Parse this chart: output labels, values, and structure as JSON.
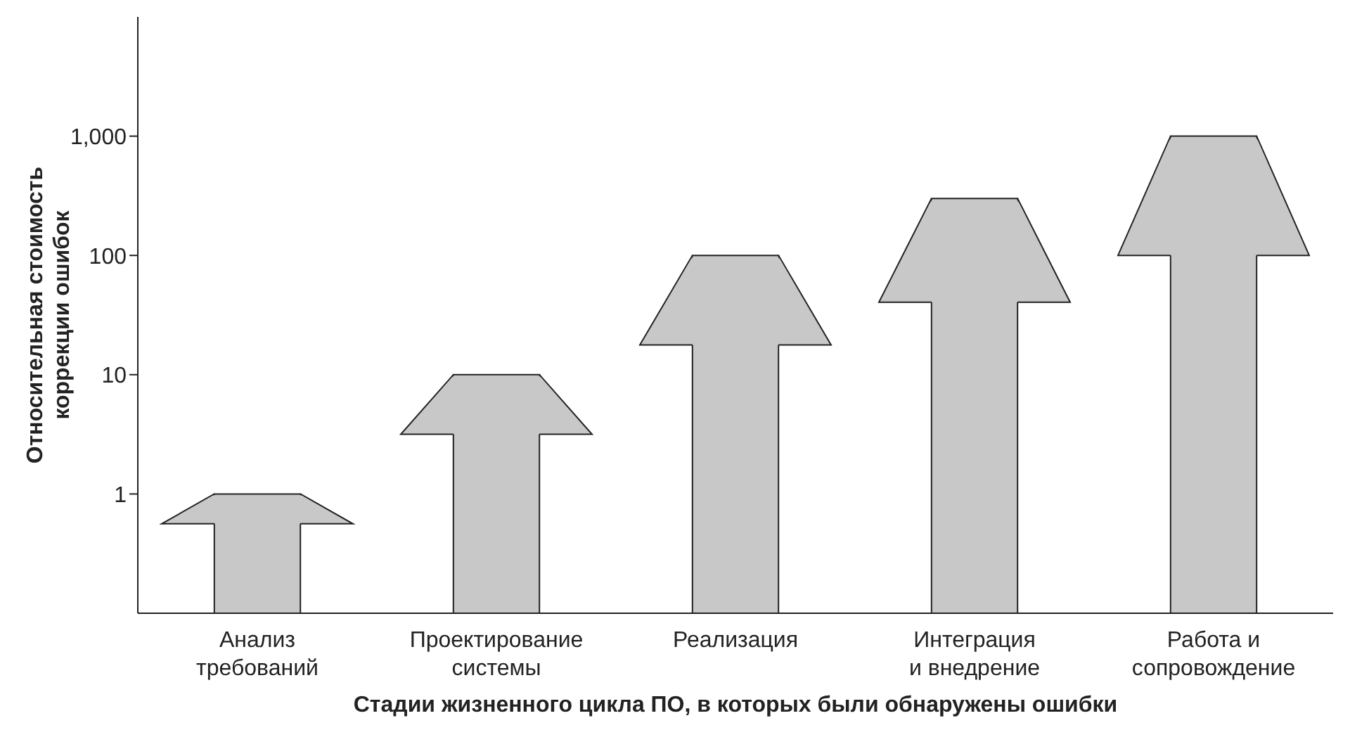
{
  "chart_data": {
    "type": "bar",
    "xlabel": "Стадии жизненного цикла ПО, в которых были обнаружены ошибки",
    "ylabel": "Относительная стоимость\nкоррекции ошибок",
    "categories": [
      "Анализ\nтребований",
      "Проектирование\nсистемы",
      "Реализация",
      "Интеграция\nи внедрение",
      "Работа и\nсопровождение"
    ],
    "values": [
      1,
      10,
      100,
      300,
      1000
    ],
    "color": "#c8c8c8",
    "log": true,
    "ylim": [
      0.1,
      10000
    ],
    "yticks": [
      1,
      10,
      100,
      {
        "value": 1000,
        "label": "1,000"
      }
    ],
    "grid": false,
    "legend": false
  }
}
